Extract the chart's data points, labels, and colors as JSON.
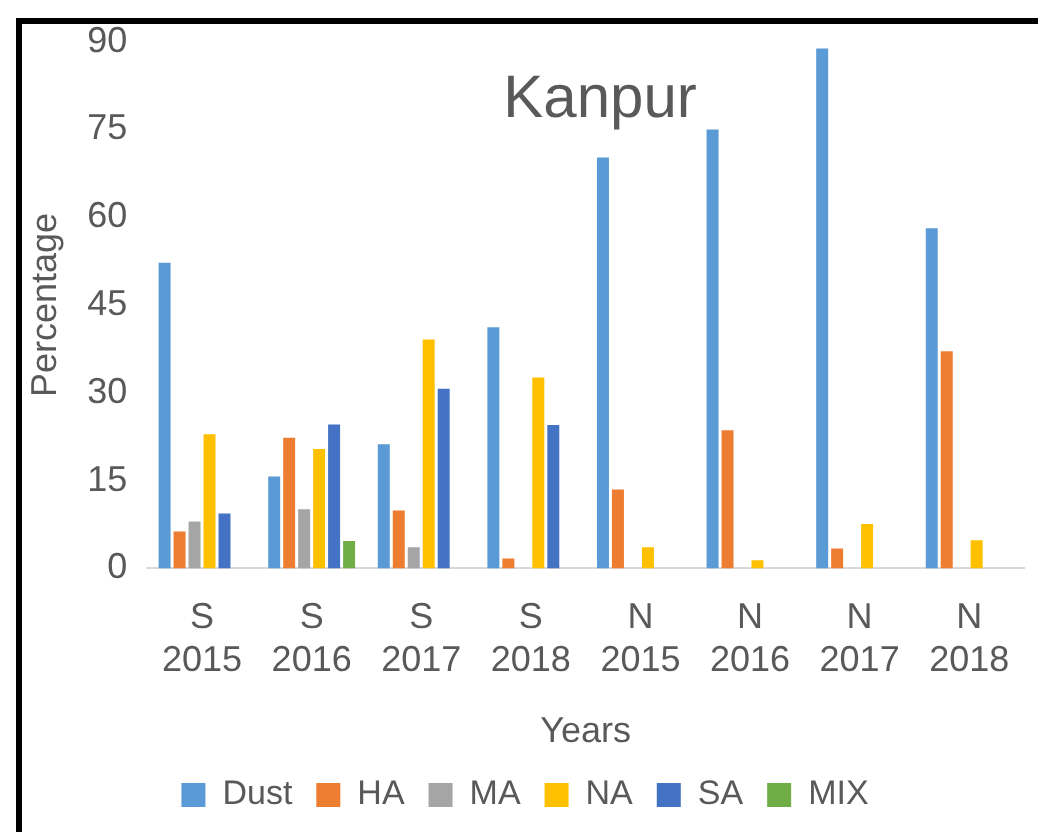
{
  "chart_data": {
    "type": "bar",
    "title": "Kanpur",
    "xlabel": "Years",
    "ylabel": "Percentage",
    "categories": [
      "S 2015",
      "S 2016",
      "S 2017",
      "S 2018",
      "N 2015",
      "N 2016",
      "N 2017",
      "N 2018"
    ],
    "series": [
      {
        "name": "Dust",
        "color": "#5b9bd5",
        "values": [
          52.2,
          15.7,
          21.2,
          41.2,
          70.2,
          75.0,
          88.8,
          58.1
        ]
      },
      {
        "name": "HA",
        "color": "#ed7d31",
        "values": [
          6.3,
          22.3,
          9.9,
          1.7,
          13.5,
          23.6,
          3.4,
          37.1
        ]
      },
      {
        "name": "MA",
        "color": "#a5a5a5",
        "values": [
          8.0,
          10.1,
          3.6,
          0,
          0,
          0,
          0,
          0
        ]
      },
      {
        "name": "NA",
        "color": "#ffc000",
        "values": [
          22.9,
          20.4,
          39.1,
          32.6,
          3.6,
          1.4,
          7.6,
          4.8
        ]
      },
      {
        "name": "SA",
        "color": "#4472c4",
        "values": [
          9.4,
          24.6,
          30.7,
          24.5,
          0,
          0,
          0,
          0
        ]
      },
      {
        "name": "MIX",
        "color": "#70ad47",
        "values": [
          0,
          4.7,
          0,
          0,
          0,
          0,
          0,
          0
        ]
      }
    ],
    "ylim": [
      0,
      90
    ],
    "yticks": [
      0,
      15,
      30,
      45,
      60,
      75,
      90
    ],
    "grid": false,
    "legend": "bottom"
  }
}
